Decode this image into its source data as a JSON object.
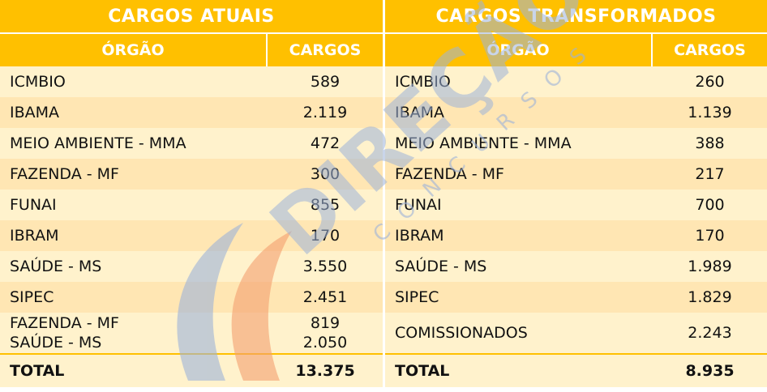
{
  "left": {
    "title": "CARGOS ATUAIS",
    "col_org": "ÓRGÃO",
    "col_cargos": "CARGOS",
    "rows": [
      {
        "org": "ICMBIO",
        "cargos": "589"
      },
      {
        "org": "IBAMA",
        "cargos": "2.119"
      },
      {
        "org": "MEIO AMBIENTE - MMA",
        "cargos": "472"
      },
      {
        "org": "FAZENDA - MF",
        "cargos": "300"
      },
      {
        "org": "FUNAI",
        "cargos": "855"
      },
      {
        "org": "IBRAM",
        "cargos": "170"
      },
      {
        "org": "SAÚDE - MS",
        "cargos": "3.550"
      },
      {
        "org": "SIPEC",
        "cargos": "2.451"
      }
    ],
    "multi_row": {
      "org_lines": [
        "FAZENDA - MF",
        "SAÚDE - MS"
      ],
      "cargos_lines": [
        "819",
        "2.050"
      ]
    },
    "total": {
      "label": "TOTAL",
      "value": "13.375"
    }
  },
  "right": {
    "title": "CARGOS TRANSFORMADOS",
    "col_org": "ÓRGÃO",
    "col_cargos": "CARGOS",
    "rows": [
      {
        "org": "ICMBIO",
        "cargos": "260"
      },
      {
        "org": "IBAMA",
        "cargos": "1.139"
      },
      {
        "org": "MEIO AMBIENTE - MMA",
        "cargos": "388"
      },
      {
        "org": "FAZENDA - MF",
        "cargos": "217"
      },
      {
        "org": "FUNAI",
        "cargos": "700"
      },
      {
        "org": "IBRAM",
        "cargos": "170"
      },
      {
        "org": "SAÚDE - MS",
        "cargos": "1.989"
      },
      {
        "org": "SIPEC",
        "cargos": "1.829"
      },
      {
        "org": "COMISSIONADOS",
        "cargos": "2.243"
      }
    ],
    "total": {
      "label": "TOTAL",
      "value": "8.935"
    }
  },
  "watermark": {
    "brand": "DIREÇÃO",
    "sub": "CONCURSOS"
  },
  "colors": {
    "header": "#ffc000",
    "row_light": "#fff2cc",
    "row_dark": "#ffe6b3",
    "watermark_blue": "#9db3d8",
    "watermark_orange": "#f4a070"
  }
}
